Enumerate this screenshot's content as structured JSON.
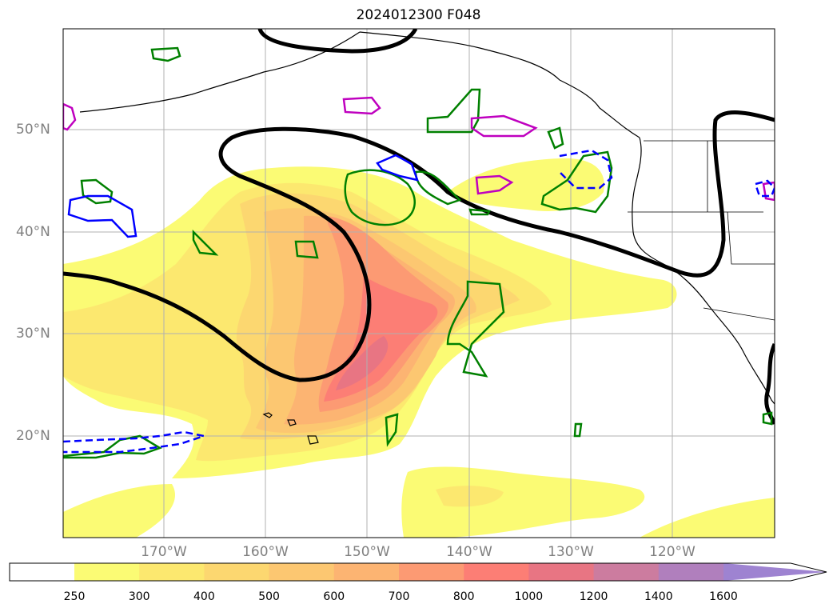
{
  "title": "2024012300 F048",
  "latitude_labels": [
    "50°N",
    "40°N",
    "30°N",
    "20°N"
  ],
  "longitude_labels": [
    "170°W",
    "160°W",
    "150°W",
    "140°W",
    "130°W",
    "120°W"
  ],
  "colorbar": {
    "ticks": [
      "250",
      "300",
      "400",
      "500",
      "600",
      "700",
      "800",
      "1000",
      "1200",
      "1400",
      "1600"
    ],
    "colors": [
      "#ffffff",
      "#fbfb74",
      "#fce86f",
      "#fcd770",
      "#fcc771",
      "#fcb472",
      "#fc9a73",
      "#fc7e75",
      "#e87583",
      "#cc7c9f",
      "#b07fbd",
      "#9e83d1"
    ],
    "extend": "max"
  },
  "contour_colors": {
    "thick_contour": "#000000",
    "green_contour": "#008000",
    "magenta_contour": "#bf00bf",
    "blue_contour": "#0000ff"
  }
}
